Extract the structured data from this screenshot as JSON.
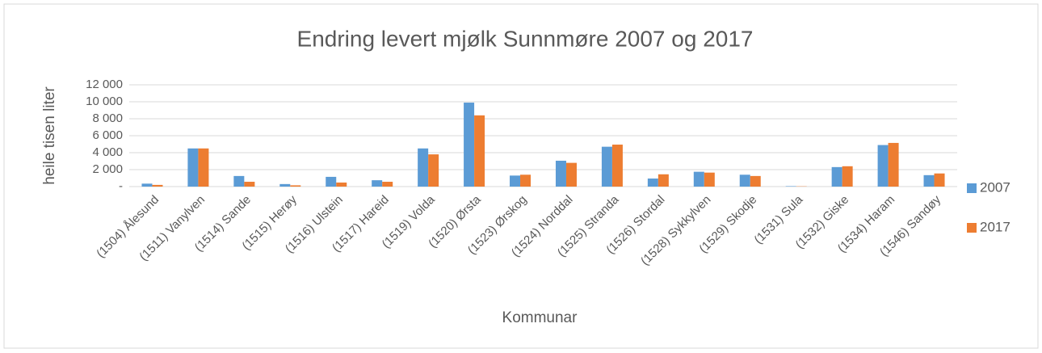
{
  "chart_data": {
    "type": "bar",
    "title": "Endring levert mjølk Sunnmøre 2007 og 2017",
    "y_label": "heile tisen liter",
    "x_label": "Kommunar",
    "categories": [
      "(1504) Ålesund",
      "(1511) Vanylven",
      "(1514) Sande",
      "(1515) Herøy",
      "(1516) Ulstein",
      "(1517) Hareid",
      "(1519) Volda",
      "(1520) Ørsta",
      "(1523) Ørskog",
      "(1524) Norddal",
      "(1525) Stranda",
      "(1526) Stordal",
      "(1528) Sykkylven",
      "(1529) Skodje",
      "(1531) Sula",
      "(1532) Giske",
      "(1534) Haram",
      "(1546) Sandøy"
    ],
    "series": [
      {
        "name": "2007",
        "color": "#5b9bd5",
        "values": [
          350,
          4500,
          1250,
          300,
          1150,
          750,
          4500,
          9900,
          1300,
          3050,
          4700,
          950,
          1750,
          1400,
          50,
          2300,
          4900,
          1350
        ]
      },
      {
        "name": "2017",
        "color": "#ed7d31",
        "values": [
          200,
          4500,
          570,
          150,
          480,
          570,
          3800,
          8400,
          1400,
          2800,
          4950,
          1450,
          1650,
          1250,
          30,
          2400,
          5150,
          1550
        ]
      }
    ],
    "ylim": [
      0,
      12000
    ],
    "yticks": [
      {
        "value": 0,
        "label": "-"
      },
      {
        "value": 2000,
        "label": "2 000"
      },
      {
        "value": 4000,
        "label": "4 000"
      },
      {
        "value": 6000,
        "label": "6 000"
      },
      {
        "value": 8000,
        "label": "8 000"
      },
      {
        "value": 10000,
        "label": "10 000"
      },
      {
        "value": 12000,
        "label": "12 000"
      }
    ],
    "grid": true,
    "legend": "right"
  }
}
